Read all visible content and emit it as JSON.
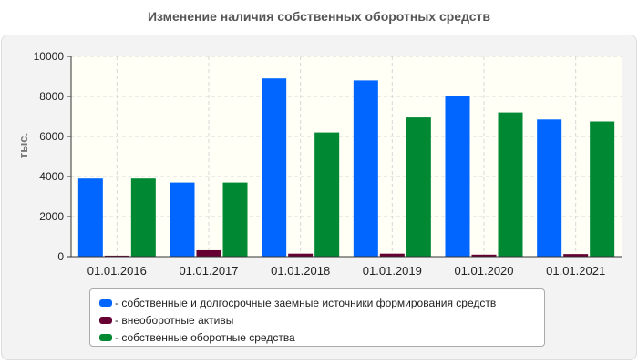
{
  "chart_data": {
    "type": "bar",
    "title": "Изменение наличия собственных оборотных средств",
    "ylabel": "тыс.",
    "xlabel": "",
    "ylim": [
      0,
      10000
    ],
    "yticks": [
      0,
      2000,
      4000,
      6000,
      8000,
      10000
    ],
    "grid": true,
    "legend_position": "bottom",
    "categories": [
      "01.01.2016",
      "01.01.2017",
      "01.01.2018",
      "01.01.2019",
      "01.01.2020",
      "01.01.2021"
    ],
    "series": [
      {
        "name": "- собственные и долгосрочные заемные источники формирования средств",
        "color": "#0066ff",
        "values": [
          3900,
          3700,
          8900,
          8800,
          8000,
          6850
        ]
      },
      {
        "name": "- внеоборотные активы",
        "color": "#660033",
        "values": [
          50,
          320,
          150,
          150,
          100,
          130
        ]
      },
      {
        "name": "- собственные оборотные средства",
        "color": "#008833",
        "values": [
          3900,
          3700,
          6200,
          6950,
          7200,
          6750
        ]
      }
    ]
  }
}
